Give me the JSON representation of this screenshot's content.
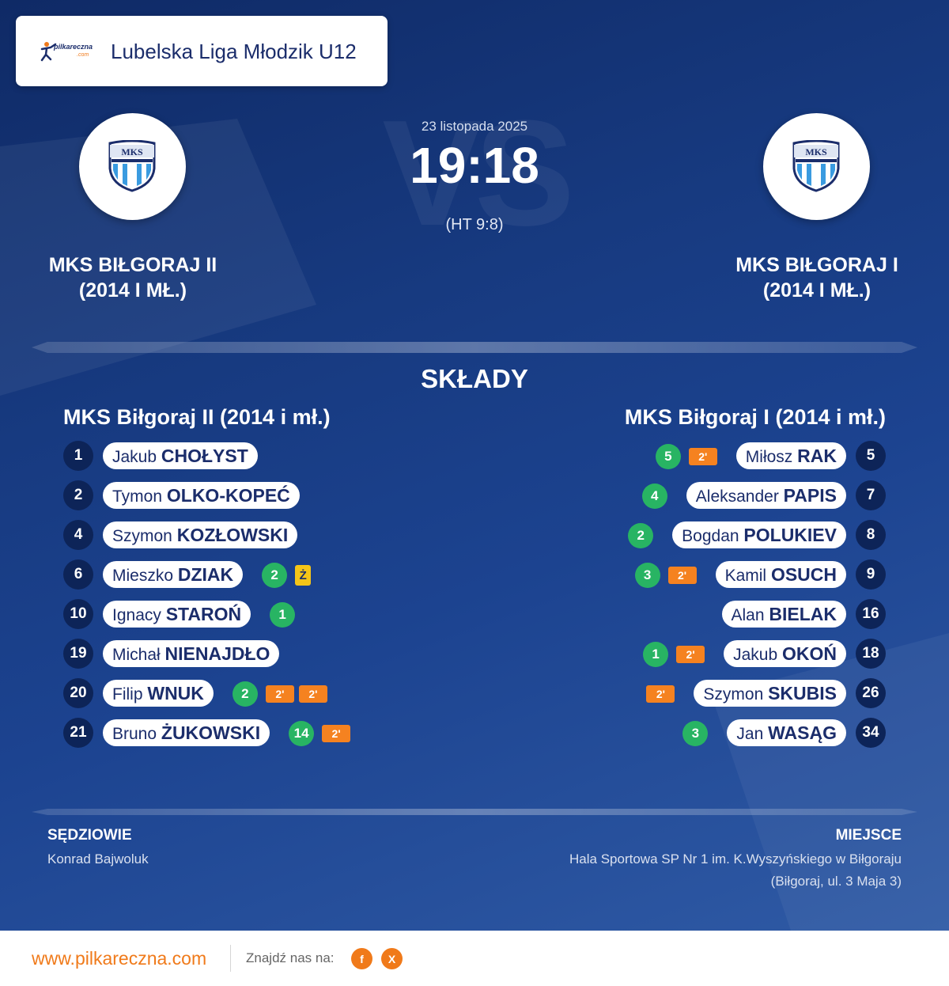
{
  "league": {
    "brand_text": "pilkareczna",
    "brand_sub": ".com",
    "name": "Lubelska Liga Młodzik U12"
  },
  "match": {
    "date": "23 listopada 2025",
    "score": "19:18",
    "halftime": "(HT 9:8)",
    "vs_watermark": "VS",
    "home_name": "MKS BIŁGORAJ II\n(2014 I MŁ.)",
    "away_name": "MKS BIŁGORAJ I\n(2014 I MŁ.)",
    "crest_text": "MKS"
  },
  "squads_title": "SKŁADY",
  "home_squad": {
    "title": "MKS Biłgoraj II (2014 i mł.)",
    "players": [
      {
        "number": "1",
        "first": "Jakub",
        "last": "CHOŁYST",
        "goals": "",
        "events": []
      },
      {
        "number": "2",
        "first": "Tymon",
        "last": "OLKO-KOPEĆ",
        "goals": "",
        "events": []
      },
      {
        "number": "4",
        "first": "Szymon",
        "last": "KOZŁOWSKI",
        "goals": "",
        "events": []
      },
      {
        "number": "6",
        "first": "Mieszko",
        "last": "DZIAK",
        "goals": "2",
        "events": [
          "Ż"
        ]
      },
      {
        "number": "10",
        "first": "Ignacy",
        "last": "STAROŃ",
        "goals": "1",
        "events": []
      },
      {
        "number": "19",
        "first": "Michał",
        "last": "NIENAJDŁO",
        "goals": "",
        "events": []
      },
      {
        "number": "20",
        "first": "Filip",
        "last": "WNUK",
        "goals": "2",
        "events": [
          "2'",
          "2'"
        ]
      },
      {
        "number": "21",
        "first": "Bruno",
        "last": "ŻUKOWSKI",
        "goals": "14",
        "events": [
          "2'"
        ]
      }
    ]
  },
  "away_squad": {
    "title": "MKS Biłgoraj I (2014 i mł.)",
    "players": [
      {
        "number": "5",
        "first": "Miłosz",
        "last": "RAK",
        "goals": "5",
        "events": [
          "2'"
        ]
      },
      {
        "number": "7",
        "first": "Aleksander",
        "last": "PAPIS",
        "goals": "4",
        "events": []
      },
      {
        "number": "8",
        "first": "Bogdan",
        "last": "POLUKIEV",
        "goals": "2",
        "events": []
      },
      {
        "number": "9",
        "first": "Kamil",
        "last": "OSUCH",
        "goals": "3",
        "events": [
          "2'"
        ]
      },
      {
        "number": "16",
        "first": "Alan",
        "last": "BIELAK",
        "goals": "",
        "events": []
      },
      {
        "number": "18",
        "first": "Jakub",
        "last": "OKOŃ",
        "goals": "1",
        "events": [
          "2'"
        ]
      },
      {
        "number": "26",
        "first": "Szymon",
        "last": "SKUBIS",
        "goals": "",
        "events": [
          "2'"
        ]
      },
      {
        "number": "34",
        "first": "Jan",
        "last": "WASĄG",
        "goals": "3",
        "events": []
      }
    ]
  },
  "referees": {
    "label": "SĘDZIOWIE",
    "name": "Konrad Bajwoluk"
  },
  "venue": {
    "label": "MIEJSCE",
    "line1": "Hala Sportowa SP Nr 1 im. K.Wyszyńskiego w Biłgoraju",
    "line2": "(Biłgoraj, ul. 3 Maja 3)"
  },
  "footer": {
    "site": "www.pilkareczna.com",
    "find_us": "Znajdź nas na:",
    "social": [
      "f",
      "X"
    ]
  },
  "colors": {
    "navy": "#0d2458",
    "goal": "#28b463",
    "penalty": "#f58220",
    "yellow_card": "#f5c518",
    "brand_orange": "#f07a1a"
  }
}
